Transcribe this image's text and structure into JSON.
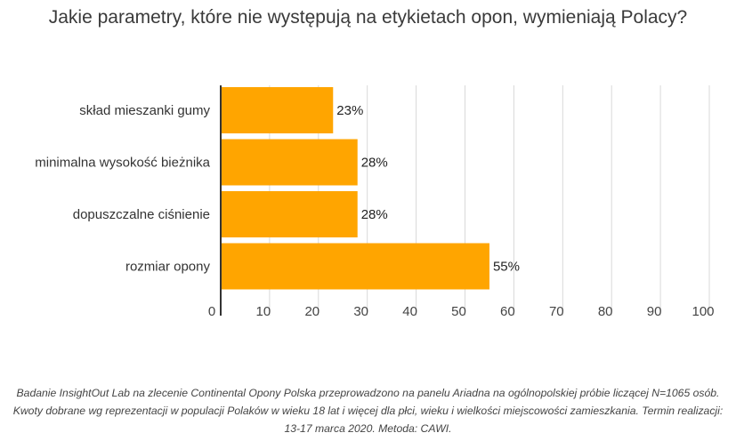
{
  "title": "Jakie parametry, które nie występują na etykietach opon, wymieniają Polacy?",
  "chart_data": {
    "type": "bar",
    "orientation": "horizontal",
    "categories": [
      "skład mieszanki gumy",
      "minimalna wysokość bieżnika",
      "dopuszczalne ciśnienie",
      "rozmiar opony"
    ],
    "values": [
      23,
      28,
      28,
      55
    ],
    "value_labels": [
      "23%",
      "28%",
      "28%",
      "55%"
    ],
    "xlim": [
      0,
      100
    ],
    "xticks": [
      0,
      10,
      20,
      30,
      40,
      50,
      60,
      70,
      80,
      90,
      100
    ],
    "grid": "vertical",
    "legend": "none",
    "bar_color": "#FFA500"
  },
  "footnote": "Badanie InsightOut Lab na zlecenie Continental Opony Polska przeprowadzono na panelu Ariadna na ogólnopolskiej próbie liczącej N=1065 osób. Kwoty dobrane wg reprezentacji w populacji Polaków w wieku 18 lat i więcej dla płci, wieku i wielkości miejscowości zamieszkania. Termin realizacji: 13-17 marca 2020. Metoda: CAWI."
}
